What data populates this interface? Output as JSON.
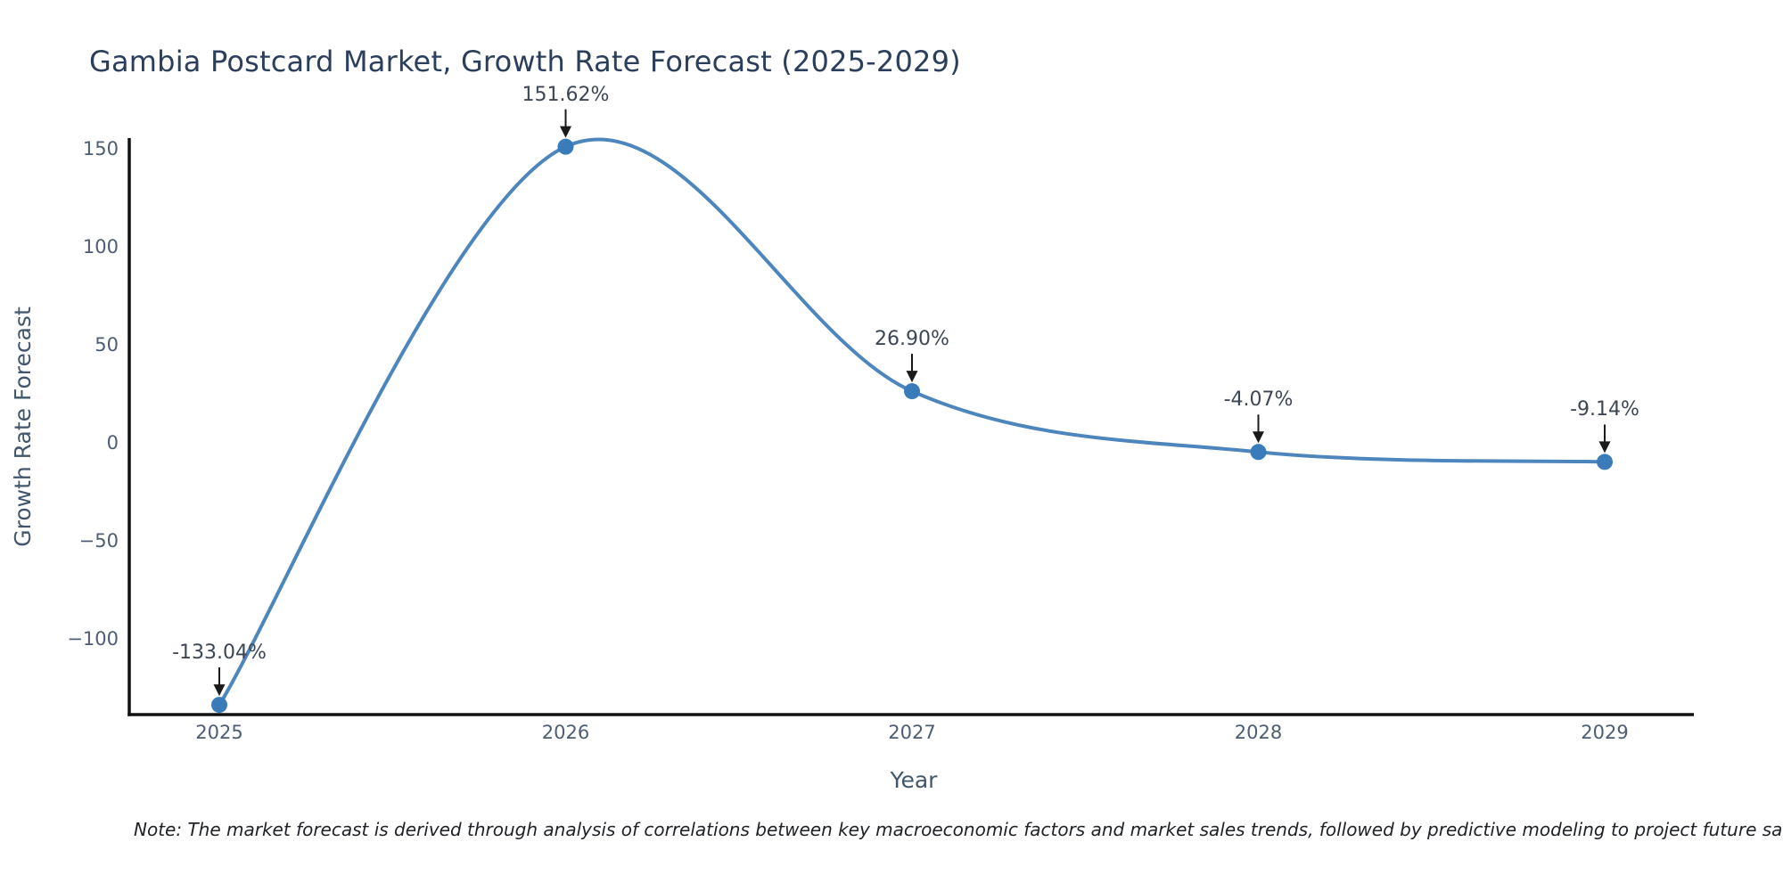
{
  "chart_data": {
    "type": "line",
    "line_shape": "spline",
    "title": "Gambia Postcard Market, Growth Rate Forecast (2025-2029)",
    "xlabel": "Year",
    "ylabel": "Growth Rate Forecast",
    "note": "Note: The market forecast is derived through analysis of correlations between key macroeconomic factors and market sales trends, followed by predictive modeling to project future sa",
    "x": [
      2025,
      2026,
      2027,
      2028,
      2029
    ],
    "values": [
      -133.04,
      151.62,
      26.9,
      -4.07,
      -9.14
    ],
    "point_labels": [
      "-133.04%",
      "151.62%",
      "26.90%",
      "-4.07%",
      "-9.14%"
    ],
    "xtick_labels": [
      "2025",
      "2026",
      "2027",
      "2028",
      "2029"
    ],
    "yticks": [
      150,
      100,
      50,
      0,
      -50,
      -100
    ],
    "ytick_labels": [
      "150",
      "100",
      "50",
      "0",
      "−50",
      "−100"
    ],
    "ylim": [
      -138,
      156
    ],
    "grid": false,
    "legend": "none",
    "colors": {
      "line": "#4d86bc",
      "marker": "#3a7cba",
      "axis": "#111111",
      "arrow": "#1a1a1a",
      "title_text": "#2b3f5c",
      "tick_text": "#4d5e74",
      "axis_title_text": "#42566b",
      "annotation_text": "#3d4654",
      "note_text": "#1e2126",
      "background": "#ffffff"
    }
  }
}
